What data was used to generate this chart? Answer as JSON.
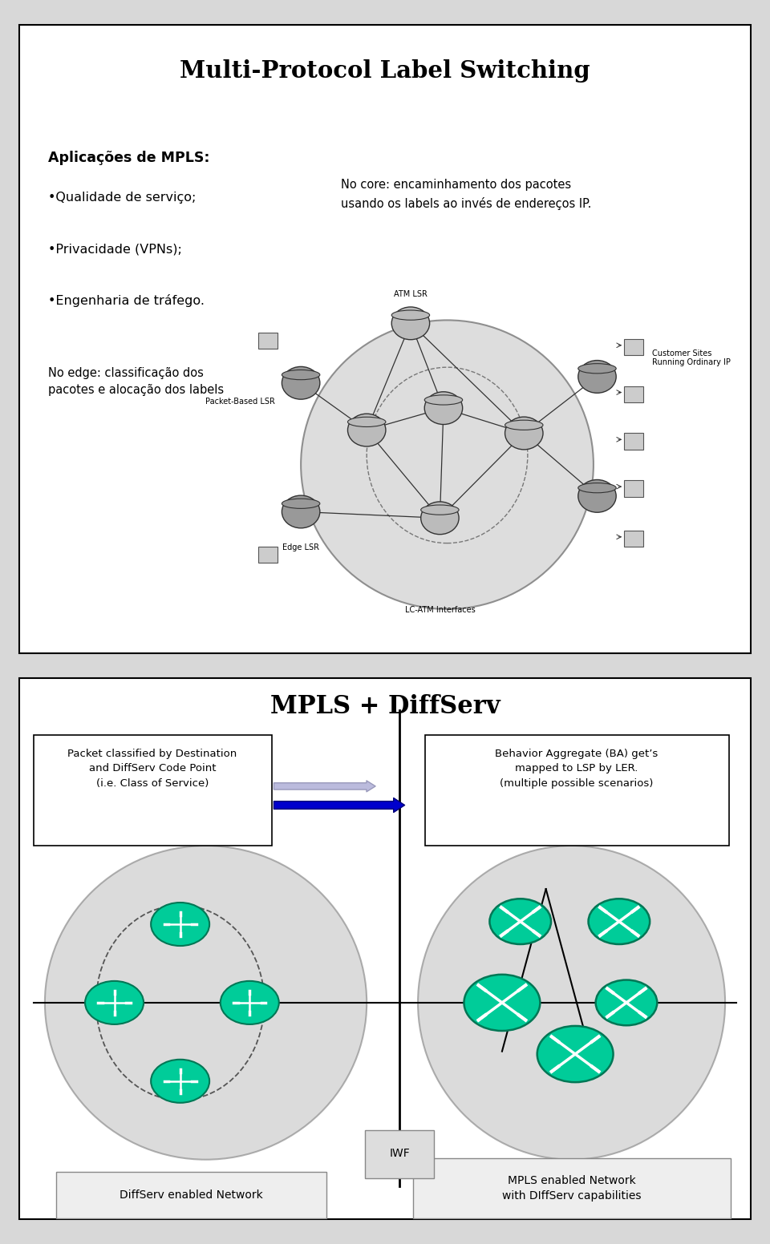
{
  "slide1_title": "Multi-Protocol Label Switching",
  "slide1_left_title": "Aplicações de MPLS:",
  "slide1_bullets": [
    "•Qualidade de serviço;",
    "•Privacidade (VPNs);",
    "•Engenharia de tráfego."
  ],
  "slide1_right_text": "No core: encaminhamento dos pacotes\nusando os labels ao invés de endereços IP.",
  "slide1_edge_text": "No edge: classificação dos\npacotes e alocação dos labels",
  "slide2_title": "MPLS + DiffServ",
  "slide2_left_box": "Packet classified by Destination\nand DiffServ Code Point\n(i.e. Class of Service)",
  "slide2_right_box": "Behavior Aggregate (BA) get’s\nmapped to LSP by LER.\n(multiple possible scenarios)",
  "slide2_left_label": "DiffServ enabled Network",
  "slide2_right_label": "MPLS enabled Network\nwith DIffServ capabilities",
  "slide2_iwf": "IWF",
  "bg_color": "#ffffff",
  "slide_border_color": "#000000",
  "text_color": "#000000",
  "arrow_color_light": "#aaaadd",
  "arrow_color_dark": "#0000cc",
  "node_color_green": "#00cc99",
  "node_border_color": "#007755",
  "network_fill": "#cccccc"
}
